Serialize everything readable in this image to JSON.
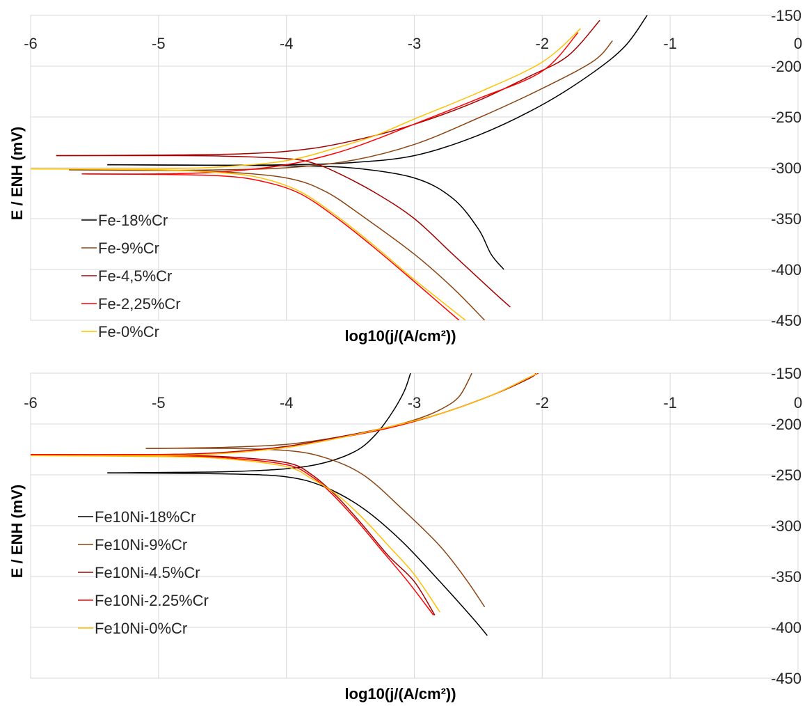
{
  "chart_data": [
    {
      "type": "line",
      "xlabel": "log10(j/(A/cm²))",
      "ylabel": "E / ENH (mV)",
      "xlim": [
        -6,
        0
      ],
      "ylim": [
        -450,
        -150
      ],
      "x_ticks": [
        "-6",
        "-5",
        "-4",
        "-3",
        "-2",
        "-1",
        "0"
      ],
      "y_ticks": [
        "-150",
        "-200",
        "-250",
        "-300",
        "-350",
        "-400",
        "-450"
      ],
      "grid": true,
      "legend_position": "bottom-left",
      "series": [
        {
          "name": "Fe-18%Cr",
          "color": "#000000",
          "anodic": [
            [
              -5.4,
              -297
            ],
            [
              -4.5,
              -297.5
            ],
            [
              -4.0,
              -297
            ],
            [
              -3.5,
              -295
            ],
            [
              -3.0,
              -288
            ],
            [
              -2.5,
              -268
            ],
            [
              -2.0,
              -238
            ],
            [
              -1.6,
              -206
            ],
            [
              -1.35,
              -180
            ],
            [
              -1.18,
              -150
            ]
          ],
          "cathodic": [
            [
              -5.4,
              -297
            ],
            [
              -4.5,
              -297.5
            ],
            [
              -4.0,
              -298
            ],
            [
              -3.5,
              -300
            ],
            [
              -3.0,
              -310
            ],
            [
              -2.7,
              -330
            ],
            [
              -2.5,
              -360
            ],
            [
              -2.4,
              -385
            ],
            [
              -2.3,
              -400
            ]
          ]
        },
        {
          "name": "Fe-9%Cr",
          "color": "#8B4513",
          "anodic": [
            [
              -5.7,
              -302
            ],
            [
              -5.0,
              -302.5
            ],
            [
              -4.5,
              -302
            ],
            [
              -4.0,
              -300
            ],
            [
              -3.5,
              -293
            ],
            [
              -3.0,
              -277
            ],
            [
              -2.5,
              -251
            ],
            [
              -2.0,
              -222
            ],
            [
              -1.6,
              -195
            ],
            [
              -1.45,
              -175
            ]
          ],
          "cathodic": [
            [
              -5.7,
              -302
            ],
            [
              -5.0,
              -302.5
            ],
            [
              -4.5,
              -304
            ],
            [
              -4.0,
              -310
            ],
            [
              -3.7,
              -323
            ],
            [
              -3.4,
              -348
            ],
            [
              -3.0,
              -385
            ],
            [
              -2.7,
              -418
            ],
            [
              -2.45,
              -450
            ]
          ]
        },
        {
          "name": "Fe-4,5%Cr",
          "color": "#A50000",
          "anodic": [
            [
              -5.8,
              -288
            ],
            [
              -5.0,
              -287.5
            ],
            [
              -4.3,
              -286
            ],
            [
              -3.8,
              -281
            ],
            [
              -3.3,
              -268
            ],
            [
              -2.9,
              -253
            ],
            [
              -2.5,
              -234
            ],
            [
              -2.1,
              -210
            ],
            [
              -1.8,
              -190
            ],
            [
              -1.55,
              -155
            ]
          ],
          "cathodic": [
            [
              -5.8,
              -288
            ],
            [
              -5.0,
              -288
            ],
            [
              -4.5,
              -288.5
            ],
            [
              -4.0,
              -291
            ],
            [
              -3.8,
              -295
            ],
            [
              -3.6,
              -305
            ],
            [
              -3.3,
              -325
            ],
            [
              -3.0,
              -350
            ],
            [
              -2.7,
              -385
            ],
            [
              -2.4,
              -420
            ],
            [
              -2.25,
              -437
            ]
          ]
        },
        {
          "name": "Fe-2,25%Cr",
          "color": "#FF0000",
          "anodic": [
            [
              -5.6,
              -306
            ],
            [
              -5.0,
              -306
            ],
            [
              -4.5,
              -304
            ],
            [
              -4.0,
              -297
            ],
            [
              -3.6,
              -285
            ],
            [
              -3.3,
              -272
            ],
            [
              -3.0,
              -257
            ],
            [
              -2.5,
              -232
            ],
            [
              -2.0,
              -205
            ],
            [
              -1.72,
              -167
            ]
          ],
          "cathodic": [
            [
              -5.6,
              -306
            ],
            [
              -5.0,
              -306.5
            ],
            [
              -4.5,
              -308
            ],
            [
              -4.2,
              -313
            ],
            [
              -3.9,
              -325
            ],
            [
              -3.6,
              -350
            ],
            [
              -3.3,
              -380
            ],
            [
              -3.0,
              -412
            ],
            [
              -2.65,
              -450
            ]
          ]
        },
        {
          "name": "Fe-0%Cr",
          "color": "#FFC000",
          "anodic": [
            [
              -6.0,
              -301
            ],
            [
              -5.0,
              -301
            ],
            [
              -4.5,
              -299
            ],
            [
              -4.0,
              -293
            ],
            [
              -3.6,
              -280
            ],
            [
              -3.3,
              -268
            ],
            [
              -3.0,
              -252
            ],
            [
              -2.5,
              -226
            ],
            [
              -2.0,
              -196
            ],
            [
              -1.7,
              -163
            ]
          ],
          "cathodic": [
            [
              -6.0,
              -301
            ],
            [
              -5.0,
              -302
            ],
            [
              -4.5,
              -305
            ],
            [
              -4.2,
              -310
            ],
            [
              -3.9,
              -323
            ],
            [
              -3.6,
              -348
            ],
            [
              -3.3,
              -378
            ],
            [
              -3.0,
              -410
            ],
            [
              -2.6,
              -450
            ]
          ]
        }
      ]
    },
    {
      "type": "line",
      "xlabel": "log10(j/(A/cm²))",
      "ylabel": "E / ENH (mV)",
      "xlim": [
        -6,
        0
      ],
      "ylim": [
        -450,
        -150
      ],
      "x_ticks": [
        "-6",
        "-5",
        "-4",
        "-3",
        "-2",
        "-1",
        "0"
      ],
      "y_ticks": [
        "-150",
        "-200",
        "-250",
        "-300",
        "-350",
        "-400",
        "-450"
      ],
      "grid": true,
      "legend_position": "bottom-left",
      "series": [
        {
          "name": "Fe10Ni-18%Cr",
          "color": "#000000",
          "anodic": [
            [
              -5.4,
              -248
            ],
            [
              -4.5,
              -247
            ],
            [
              -4.0,
              -244
            ],
            [
              -3.7,
              -238
            ],
            [
              -3.45,
              -226
            ],
            [
              -3.3,
              -210
            ],
            [
              -3.18,
              -190
            ],
            [
              -3.08,
              -168
            ],
            [
              -3.03,
              -150
            ]
          ],
          "cathodic": [
            [
              -5.4,
              -248
            ],
            [
              -4.5,
              -249
            ],
            [
              -4.0,
              -252
            ],
            [
              -3.7,
              -262
            ],
            [
              -3.4,
              -283
            ],
            [
              -3.1,
              -315
            ],
            [
              -2.8,
              -355
            ],
            [
              -2.55,
              -390
            ],
            [
              -2.43,
              -408
            ]
          ]
        },
        {
          "name": "Fe10Ni-9%Cr",
          "color": "#8B4513",
          "anodic": [
            [
              -5.1,
              -224
            ],
            [
              -4.5,
              -223
            ],
            [
              -4.0,
              -220
            ],
            [
              -3.6,
              -213
            ],
            [
              -3.3,
              -206
            ],
            [
              -3.0,
              -196
            ],
            [
              -2.8,
              -186
            ],
            [
              -2.65,
              -173
            ],
            [
              -2.55,
              -150
            ]
          ],
          "cathodic": [
            [
              -5.1,
              -224
            ],
            [
              -4.5,
              -224
            ],
            [
              -4.0,
              -226
            ],
            [
              -3.7,
              -233
            ],
            [
              -3.4,
              -250
            ],
            [
              -3.1,
              -283
            ],
            [
              -2.8,
              -320
            ],
            [
              -2.6,
              -352
            ],
            [
              -2.45,
              -380
            ]
          ]
        },
        {
          "name": "Fe10Ni-4.5%Cr",
          "color": "#A50000",
          "anodic": [
            [
              -6.0,
              -230
            ],
            [
              -5.0,
              -230
            ],
            [
              -4.5,
              -228
            ],
            [
              -4.0,
              -222
            ],
            [
              -3.6,
              -213
            ],
            [
              -3.2,
              -203
            ],
            [
              -2.8,
              -190
            ],
            [
              -2.4,
              -172
            ],
            [
              -2.1,
              -155
            ],
            [
              -2.05,
              -150
            ]
          ],
          "cathodic": [
            [
              -6.0,
              -230
            ],
            [
              -5.0,
              -231
            ],
            [
              -4.5,
              -232
            ],
            [
              -4.0,
              -238
            ],
            [
              -3.8,
              -250
            ],
            [
              -3.6,
              -272
            ],
            [
              -3.4,
              -300
            ],
            [
              -3.2,
              -330
            ],
            [
              -3.0,
              -355
            ],
            [
              -2.84,
              -388
            ]
          ]
        },
        {
          "name": "Fe10Ni-2.25%Cr",
          "color": "#FF0000",
          "anodic": [
            [
              -6.0,
              -230
            ],
            [
              -5.0,
              -230
            ],
            [
              -4.5,
              -228.5
            ],
            [
              -4.0,
              -223
            ],
            [
              -3.6,
              -214
            ],
            [
              -3.2,
              -204
            ],
            [
              -2.8,
              -190
            ],
            [
              -2.4,
              -172
            ],
            [
              -2.1,
              -154
            ],
            [
              -2.03,
              -150
            ]
          ],
          "cathodic": [
            [
              -6.0,
              -230
            ],
            [
              -5.0,
              -231
            ],
            [
              -4.5,
              -233
            ],
            [
              -4.0,
              -240
            ],
            [
              -3.8,
              -252
            ],
            [
              -3.65,
              -268
            ],
            [
              -3.45,
              -295
            ],
            [
              -3.25,
              -325
            ],
            [
              -3.05,
              -355
            ],
            [
              -2.85,
              -388
            ]
          ]
        },
        {
          "name": "Fe10Ni-0%Cr",
          "color": "#FFC000",
          "anodic": [
            [
              -6.0,
              -231
            ],
            [
              -5.0,
              -231
            ],
            [
              -4.5,
              -229
            ],
            [
              -4.0,
              -223
            ],
            [
              -3.6,
              -214
            ],
            [
              -3.2,
              -203
            ],
            [
              -2.8,
              -190
            ],
            [
              -2.4,
              -172
            ],
            [
              -2.1,
              -154
            ],
            [
              -2.04,
              -150
            ]
          ],
          "cathodic": [
            [
              -6.0,
              -231
            ],
            [
              -5.0,
              -232
            ],
            [
              -4.5,
              -234
            ],
            [
              -4.0,
              -242
            ],
            [
              -3.8,
              -254
            ],
            [
              -3.6,
              -270
            ],
            [
              -3.4,
              -293
            ],
            [
              -3.2,
              -320
            ],
            [
              -3.0,
              -348
            ],
            [
              -2.8,
              -385
            ]
          ]
        }
      ]
    }
  ]
}
